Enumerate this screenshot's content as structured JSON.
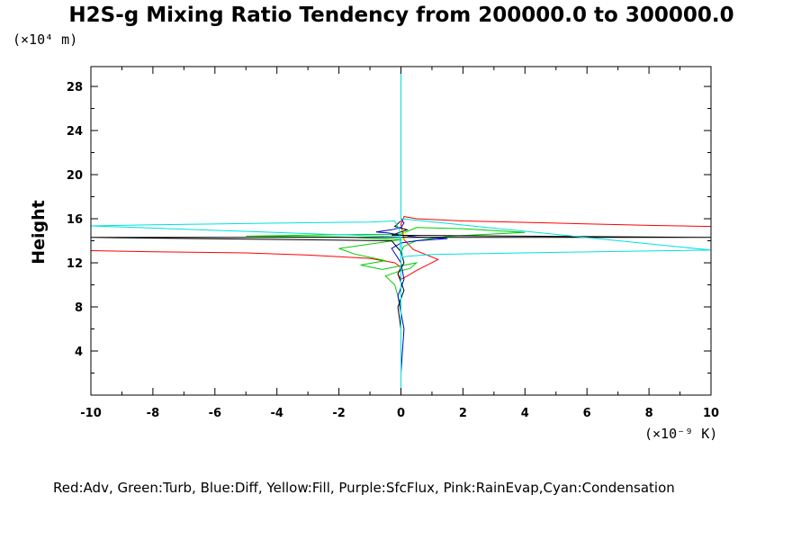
{
  "chart_data": {
    "type": "line",
    "title": "H2S-g Mixing Ratio Tendency from 200000.0 to 300000.0",
    "ylabel": "Height",
    "yunit": "(×10⁴ m)",
    "xunit": "(×10⁻⁹ K)",
    "legend_text": "Red:Adv, Green:Turb, Blue:Diff, Yellow:Fill, Purple:SfcFlux, Pink:RainEvap,Cyan:Condensation",
    "xlim": [
      -10,
      10
    ],
    "ylim": [
      0,
      29.8
    ],
    "x_ticks": [
      -10,
      -8,
      -6,
      -4,
      -2,
      0,
      2,
      4,
      6,
      8,
      10
    ],
    "y_ticks": [
      4,
      8,
      12,
      16,
      20,
      24,
      28
    ],
    "grid": false,
    "series": [
      {
        "color": "#ff0000",
        "x": [
          -10.2,
          -8,
          -5,
          -3,
          -1,
          -0.2,
          0,
          -0.1,
          0,
          0.2,
          0.5,
          1.2,
          0.4,
          0.1,
          0,
          0.1,
          0.5,
          2,
          5,
          8,
          10.2
        ],
        "y": [
          13.1,
          13,
          12.9,
          12.7,
          12.4,
          12.0,
          11.6,
          11,
          10.5,
          10.8,
          11.3,
          12.3,
          13.2,
          14.1,
          15.5,
          16.2,
          16.0,
          15.8,
          15.6,
          15.4,
          15.3
        ]
      },
      {
        "color": "#00cc00",
        "x": [
          0,
          -0.1,
          -0.2,
          -0.5,
          -0.1,
          0.3,
          0.5,
          -0.6,
          -1.3,
          -0.5,
          -1.5,
          -2,
          -0.5,
          0,
          -2,
          -5,
          -2,
          0,
          0.5,
          2,
          4,
          1.5,
          0.5,
          0.1,
          0
        ],
        "y": [
          8,
          9,
          10,
          10.8,
          11.2,
          11.5,
          12,
          11.4,
          11.8,
          12.2,
          12.8,
          13.3,
          13.9,
          14.1,
          14.35,
          14.42,
          14.55,
          14.6,
          15.2,
          15.1,
          14.75,
          14.4,
          14.0,
          13.5,
          13
        ]
      },
      {
        "color": "#0000cc",
        "x": [
          0,
          0.1,
          -0.1,
          0.1,
          0,
          -0.3,
          0,
          0.5,
          1.5,
          0.5,
          0,
          -0.4,
          -0.8,
          -0.3,
          0,
          0.1,
          0
        ],
        "y": [
          2,
          6,
          9,
          10.5,
          12,
          13.3,
          13.8,
          14.0,
          14.2,
          14.35,
          14.5,
          14.7,
          14.8,
          15.0,
          15.2,
          15.6,
          16
        ]
      },
      {
        "color": "#ffff00",
        "x": [
          0,
          0.1,
          0.2,
          0.1,
          0
        ],
        "y": [
          14.0,
          14.2,
          14.5,
          14.8,
          15.0
        ]
      },
      {
        "color": "#000000",
        "x": [
          0,
          0,
          -0.1,
          0.1,
          -0.1,
          0.1,
          0,
          -0.3,
          -10.2,
          10.2,
          -0.3,
          0,
          0.2,
          -0.2,
          0
        ],
        "y": [
          0,
          6,
          8,
          9.5,
          11,
          12,
          13,
          14.0,
          14.3,
          14.3,
          14.5,
          14.8,
          15.0,
          15.3,
          15.8
        ]
      },
      {
        "color": "#00e0e0",
        "x": [
          0,
          0,
          -0.05,
          -0.2,
          -1,
          -4,
          -8,
          -10.2,
          0,
          0.05,
          0.2,
          1,
          5,
          10.2,
          0,
          0
        ],
        "y": [
          0,
          12,
          15,
          15.8,
          15.7,
          15.6,
          15.45,
          15.35,
          14.35,
          12.5,
          12.6,
          12.75,
          12.95,
          13.15,
          16,
          29.8
        ]
      }
    ]
  }
}
